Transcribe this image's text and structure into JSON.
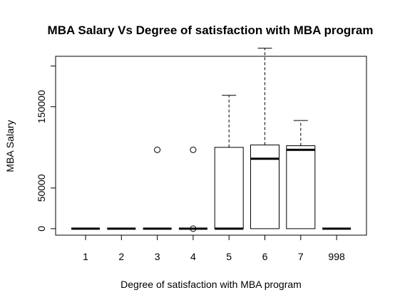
{
  "chart_data": {
    "type": "boxplot",
    "title": "MBA Salary Vs Degree of satisfaction with MBA program",
    "xlabel": "Degree of satisfaction with MBA program",
    "ylabel": "MBA Salary",
    "ylim": [
      -8000,
      212000
    ],
    "yticks": [
      0,
      50000,
      150000
    ],
    "ytick_labels": [
      "0",
      "50000",
      "150000"
    ],
    "categories": [
      "1",
      "2",
      "3",
      "4",
      "5",
      "6",
      "7",
      "998"
    ],
    "boxes": [
      {
        "category": "1",
        "min": 0,
        "q1": 0,
        "median": 0,
        "q3": 0,
        "max": 0,
        "outliers": []
      },
      {
        "category": "2",
        "min": 0,
        "q1": 0,
        "median": 0,
        "q3": 0,
        "max": 0,
        "outliers": []
      },
      {
        "category": "3",
        "min": 0,
        "q1": 0,
        "median": 0,
        "q3": 0,
        "max": 0,
        "outliers": [
          97000
        ]
      },
      {
        "category": "4",
        "min": 0,
        "q1": 0,
        "median": 0,
        "q3": 0,
        "max": 0,
        "outliers": [
          97000,
          0
        ]
      },
      {
        "category": "5",
        "min": 0,
        "q1": 0,
        "median": 0,
        "q3": 100000,
        "max": 164000,
        "outliers": []
      },
      {
        "category": "6",
        "min": 0,
        "q1": 0,
        "median": 86000,
        "q3": 103000,
        "max": 222000,
        "outliers": []
      },
      {
        "category": "7",
        "min": 0,
        "q1": 0,
        "median": 97000,
        "q3": 102000,
        "max": 133000,
        "outliers": []
      },
      {
        "category": "998",
        "min": 0,
        "q1": 0,
        "median": 0,
        "q3": 0,
        "max": 0,
        "outliers": []
      }
    ]
  }
}
